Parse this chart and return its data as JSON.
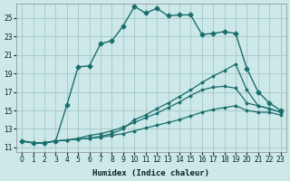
{
  "xlabel": "Humidex (Indice chaleur)",
  "xlim": [
    -0.5,
    23.5
  ],
  "ylim": [
    10.5,
    26.5
  ],
  "xticks": [
    0,
    1,
    2,
    3,
    4,
    5,
    6,
    7,
    8,
    9,
    10,
    11,
    12,
    13,
    14,
    15,
    16,
    17,
    18,
    19,
    20,
    21,
    22,
    23
  ],
  "yticks": [
    11,
    13,
    15,
    17,
    19,
    21,
    23,
    25
  ],
  "bg_color": "#cce8e8",
  "grid_color": "#aacccc",
  "line_color": "#1a6e6e",
  "line1_x": [
    0,
    1,
    2,
    3,
    4,
    5,
    6,
    7,
    8,
    9,
    10,
    11,
    12,
    13,
    14,
    15,
    16,
    17,
    18,
    19,
    20,
    21,
    22,
    23
  ],
  "line1_y": [
    11.7,
    11.5,
    11.5,
    11.7,
    15.6,
    19.7,
    19.8,
    22.2,
    22.5,
    24.1,
    26.2,
    25.5,
    26.0,
    25.2,
    25.3,
    25.3,
    23.2,
    23.3,
    23.5,
    23.3,
    19.5,
    17.0,
    15.8,
    15.0
  ],
  "line2_x": [
    0,
    1,
    2,
    3,
    4,
    5,
    6,
    7,
    8,
    9,
    10,
    11,
    12,
    13,
    14,
    15,
    16,
    17,
    18,
    19,
    20,
    21,
    22,
    23
  ],
  "line2_y": [
    11.7,
    11.5,
    11.5,
    11.7,
    11.8,
    11.9,
    12.0,
    12.2,
    12.5,
    13.0,
    14.0,
    14.5,
    15.2,
    15.8,
    16.5,
    17.2,
    18.0,
    18.7,
    19.3,
    20.0,
    17.2,
    15.5,
    15.2,
    14.8
  ],
  "line3_x": [
    0,
    1,
    2,
    3,
    4,
    5,
    6,
    7,
    8,
    9,
    10,
    11,
    12,
    13,
    14,
    15,
    16,
    17,
    18,
    19,
    20,
    21,
    22,
    23
  ],
  "line3_y": [
    11.7,
    11.5,
    11.5,
    11.7,
    11.8,
    12.0,
    12.3,
    12.5,
    12.8,
    13.2,
    13.7,
    14.2,
    14.7,
    15.3,
    15.9,
    16.6,
    17.2,
    17.5,
    17.6,
    17.4,
    15.8,
    15.5,
    15.2,
    14.8
  ],
  "line4_x": [
    0,
    1,
    2,
    3,
    4,
    5,
    6,
    7,
    8,
    9,
    10,
    11,
    12,
    13,
    14,
    15,
    16,
    17,
    18,
    19,
    20,
    21,
    22,
    23
  ],
  "line4_y": [
    11.7,
    11.5,
    11.5,
    11.7,
    11.8,
    11.9,
    12.0,
    12.1,
    12.3,
    12.5,
    12.8,
    13.1,
    13.4,
    13.7,
    14.0,
    14.4,
    14.8,
    15.1,
    15.3,
    15.5,
    15.0,
    14.8,
    14.8,
    14.5
  ]
}
